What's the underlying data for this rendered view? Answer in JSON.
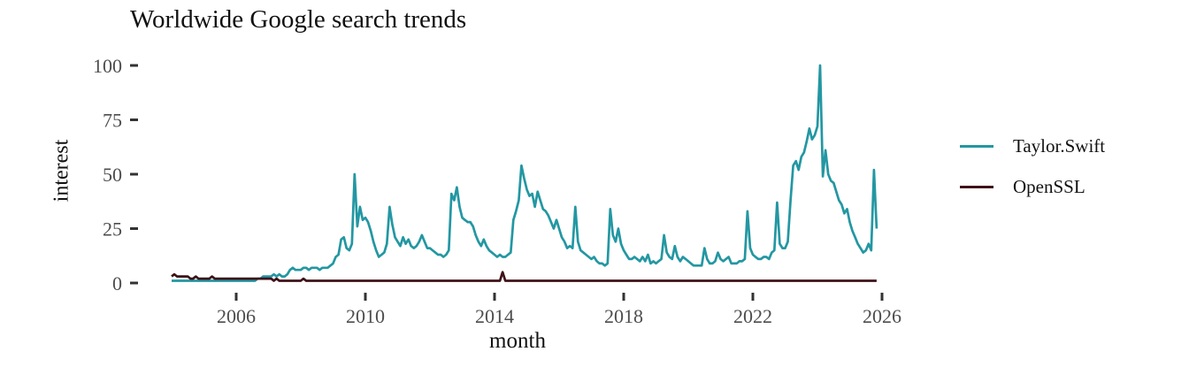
{
  "chart": {
    "title": "Worldwide Google search trends",
    "xlabel": "month",
    "ylabel": "interest"
  },
  "legend": {
    "items": [
      {
        "label": "Taylor.Swift",
        "color": "#2397A2"
      },
      {
        "label": "OpenSSL",
        "color": "#3F1218"
      }
    ]
  },
  "chart_data": {
    "type": "line",
    "title": "Worldwide Google search trends",
    "xlabel": "month",
    "ylabel": "interest",
    "x_start_year": 2004,
    "x_step_months": 1,
    "x_ticks": [
      2006,
      2010,
      2014,
      2018,
      2022,
      2026
    ],
    "y_ticks": [
      0,
      25,
      50,
      75,
      100
    ],
    "ylim": [
      0,
      100
    ],
    "xlim": [
      2003.6,
      2026.4
    ],
    "grid": false,
    "legend_position": "right",
    "axis_tick_color": "#333333",
    "axis_text_color": "#4d4d4d",
    "series": [
      {
        "name": "Taylor.Swift",
        "color": "#2397A2",
        "values": [
          1,
          1,
          1,
          1,
          1,
          1,
          1,
          1,
          1,
          1,
          1,
          1,
          1,
          1,
          1,
          1,
          1,
          1,
          1,
          1,
          1,
          1,
          1,
          1,
          1,
          1,
          1,
          1,
          1,
          1,
          1,
          1,
          2,
          2,
          3,
          3,
          3,
          3,
          4,
          3,
          4,
          3,
          3,
          4,
          6,
          7,
          6,
          6,
          6,
          7,
          7,
          6,
          7,
          7,
          7,
          6,
          7,
          7,
          7,
          8,
          9,
          12,
          13,
          20,
          21,
          16,
          15,
          18,
          50,
          26,
          35,
          29,
          30,
          28,
          24,
          19,
          15,
          12,
          13,
          14,
          18,
          35,
          27,
          21,
          19,
          17,
          21,
          18,
          20,
          17,
          16,
          17,
          19,
          22,
          19,
          16,
          16,
          15,
          14,
          13,
          13,
          12,
          13,
          15,
          41,
          38,
          44,
          35,
          30,
          29,
          28,
          28,
          26,
          22,
          19,
          17,
          20,
          17,
          15,
          14,
          13,
          12,
          13,
          12,
          12,
          13,
          14,
          29,
          33,
          38,
          54,
          48,
          43,
          40,
          41,
          35,
          42,
          38,
          34,
          33,
          31,
          28,
          25,
          29,
          25,
          21,
          19,
          16,
          17,
          16,
          35,
          19,
          15,
          14,
          13,
          12,
          11,
          12,
          10,
          9,
          9,
          8,
          9,
          34,
          22,
          19,
          25,
          18,
          15,
          13,
          11,
          11,
          12,
          11,
          10,
          12,
          10,
          13,
          9,
          10,
          9,
          10,
          11,
          22,
          14,
          12,
          11,
          17,
          12,
          10,
          12,
          11,
          10,
          9,
          8,
          8,
          8,
          8,
          16,
          11,
          9,
          9,
          10,
          14,
          11,
          10,
          11,
          12,
          9,
          9,
          9,
          10,
          10,
          11,
          33,
          16,
          13,
          12,
          11,
          11,
          12,
          12,
          11,
          14,
          15,
          37,
          18,
          16,
          16,
          19,
          38,
          54,
          56,
          52,
          58,
          60,
          65,
          71,
          66,
          68,
          72,
          100,
          49,
          61,
          50,
          47,
          46,
          42,
          38,
          36,
          32,
          34,
          28,
          24,
          21,
          18,
          16,
          14,
          15,
          18,
          15,
          52,
          25
        ]
      },
      {
        "name": "OpenSSL",
        "color": "#3F1218",
        "values": [
          3,
          4,
          3,
          3,
          3,
          3,
          3,
          2,
          2,
          3,
          2,
          2,
          2,
          2,
          2,
          3,
          2,
          2,
          2,
          2,
          2,
          2,
          2,
          2,
          2,
          2,
          2,
          2,
          2,
          2,
          2,
          2,
          2,
          2,
          2,
          2,
          2,
          2,
          1,
          2,
          1,
          1,
          1,
          1,
          1,
          1,
          1,
          1,
          1,
          2,
          1,
          1,
          1,
          1,
          1,
          1,
          1,
          1,
          1,
          1,
          1,
          1,
          1,
          1,
          1,
          1,
          1,
          1,
          1,
          1,
          1,
          1,
          1,
          1,
          1,
          1,
          1,
          1,
          1,
          1,
          1,
          1,
          1,
          1,
          1,
          1,
          1,
          1,
          1,
          1,
          1,
          1,
          1,
          1,
          1,
          1,
          1,
          1,
          1,
          1,
          1,
          1,
          1,
          1,
          1,
          1,
          1,
          1,
          1,
          1,
          1,
          1,
          1,
          1,
          1,
          1,
          1,
          1,
          1,
          1,
          1,
          1,
          1,
          5,
          1,
          1,
          1,
          1,
          1,
          1,
          1,
          1,
          1,
          1,
          1,
          1,
          1,
          1,
          1,
          1,
          1,
          1,
          1,
          1,
          1,
          1,
          1,
          1,
          1,
          1,
          1,
          1,
          1,
          1,
          1,
          1,
          1,
          1,
          1,
          1,
          1,
          1,
          1,
          1,
          1,
          1,
          1,
          1,
          1,
          1,
          1,
          1,
          1,
          1,
          1,
          1,
          1,
          1,
          1,
          1,
          1,
          1,
          1,
          1,
          1,
          1,
          1,
          1,
          1,
          1,
          1,
          1,
          1,
          1,
          1,
          1,
          1,
          1,
          1,
          1,
          1,
          1,
          1,
          1,
          1,
          1,
          1,
          1,
          1,
          1,
          1,
          1,
          1,
          1,
          1,
          1,
          1,
          1,
          1,
          1,
          1,
          1,
          1,
          1,
          1,
          1,
          1,
          1,
          1,
          1,
          1,
          1,
          1,
          1,
          1,
          1,
          1,
          1,
          1,
          1,
          1,
          1,
          1,
          1,
          1,
          1,
          1,
          1,
          1,
          1,
          1,
          1,
          1,
          1,
          1,
          1,
          1,
          1,
          1,
          1,
          1,
          1,
          1
        ]
      }
    ]
  }
}
